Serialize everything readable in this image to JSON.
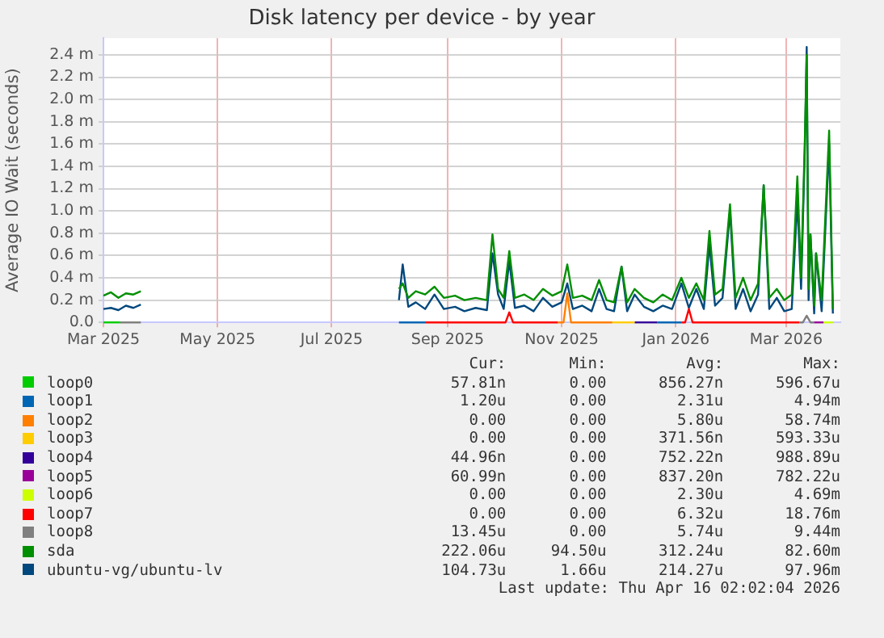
{
  "chart_data": {
    "type": "line",
    "title": "Disk latency per device - by year",
    "ylabel": "Average IO Wait (seconds)",
    "x": [
      "2025-03-01",
      "2025-03-05",
      "2025-03-09",
      "2025-03-13",
      "2025-03-17",
      "2025-03-21",
      "2025-05-15",
      "2025-08-06",
      "2025-08-08",
      "2025-08-11",
      "2025-08-15",
      "2025-08-20",
      "2025-08-25",
      "2025-08-30",
      "2025-09-05",
      "2025-09-10",
      "2025-09-16",
      "2025-09-22",
      "2025-09-25",
      "2025-09-28",
      "2025-10-01",
      "2025-10-04",
      "2025-10-07",
      "2025-10-12",
      "2025-10-17",
      "2025-10-22",
      "2025-10-27",
      "2025-11-01",
      "2025-11-04",
      "2025-11-07",
      "2025-11-12",
      "2025-11-17",
      "2025-11-21",
      "2025-11-25",
      "2025-11-29",
      "2025-12-03",
      "2025-12-06",
      "2025-12-10",
      "2025-12-15",
      "2025-12-20",
      "2025-12-25",
      "2025-12-30",
      "2026-01-04",
      "2026-01-08",
      "2026-01-12",
      "2026-01-16",
      "2026-01-19",
      "2026-01-22",
      "2026-01-26",
      "2026-01-30",
      "2026-02-02",
      "2026-02-06",
      "2026-02-10",
      "2026-02-14",
      "2026-02-17",
      "2026-02-20",
      "2026-02-24",
      "2026-02-28",
      "2026-03-04",
      "2026-03-07",
      "2026-03-09",
      "2026-03-11",
      "2026-03-12",
      "2026-03-13",
      "2026-03-14",
      "2026-03-16",
      "2026-03-17",
      "2026-03-20",
      "2026-03-24",
      "2026-03-26"
    ],
    "series": [
      {
        "name": "loop0",
        "color": "#00cc00",
        "x": [
          "2025-03-01",
          "2025-03-10"
        ],
        "values": [
          0,
          0
        ]
      },
      {
        "name": "loop1",
        "color": "#0066b3",
        "x": [
          "2025-08-06",
          "2025-08-20",
          "2025-09-01",
          "2025-12-22",
          "2026-01-04"
        ],
        "values": [
          0,
          0,
          null,
          0,
          0
        ]
      },
      {
        "name": "loop2",
        "color": "#ff8000",
        "x": [
          "2025-10-30",
          "2025-11-02",
          "2025-11-04",
          "2025-11-06",
          "2025-11-28"
        ],
        "values": [
          0,
          0,
          0.26,
          0,
          0
        ]
      },
      {
        "name": "loop3",
        "color": "#ffcc00",
        "x": [
          "2025-11-28",
          "2025-12-10"
        ],
        "values": [
          0,
          0
        ]
      },
      {
        "name": "loop4",
        "color": "#330099",
        "x": [
          "2025-12-10",
          "2025-12-22"
        ],
        "values": [
          0,
          0
        ]
      },
      {
        "name": "loop5",
        "color": "#990099",
        "x": [
          "2026-03-16",
          "2026-03-21"
        ],
        "values": [
          0,
          0
        ]
      },
      {
        "name": "loop6",
        "color": "#ccff00",
        "x": [
          "2026-03-21",
          "2026-03-26"
        ],
        "values": [
          0,
          0
        ]
      },
      {
        "name": "loop7",
        "color": "#ff0000",
        "x": [
          "2025-08-20",
          "2025-10-02",
          "2025-10-04",
          "2025-10-06",
          "2025-10-30",
          "2025-11-15",
          "2026-01-04",
          "2026-01-06",
          "2026-01-08",
          "2026-01-10",
          "2026-03-08"
        ],
        "values": [
          0,
          0,
          0.09,
          0,
          0,
          null,
          0,
          0,
          0.12,
          0,
          0
        ]
      },
      {
        "name": "loop8",
        "color": "#808080",
        "x": [
          "2025-03-10",
          "2025-03-21",
          "2025-05-15",
          "2026-03-08",
          "2026-03-10",
          "2026-03-12",
          "2026-03-14",
          "2026-03-16"
        ],
        "values": [
          0,
          0,
          null,
          0,
          0,
          0.06,
          0,
          0
        ]
      },
      {
        "name": "sda",
        "color": "#008f00",
        "values": [
          0.24,
          0.27,
          0.22,
          0.26,
          0.25,
          0.28,
          null,
          0.3,
          0.35,
          0.22,
          0.28,
          0.25,
          0.32,
          0.22,
          0.24,
          0.2,
          0.22,
          0.2,
          0.79,
          0.3,
          0.22,
          0.64,
          0.22,
          0.25,
          0.2,
          0.3,
          0.24,
          0.28,
          0.52,
          0.22,
          0.24,
          0.2,
          0.38,
          0.2,
          0.18,
          0.5,
          0.18,
          0.3,
          0.22,
          0.18,
          0.25,
          0.2,
          0.4,
          0.22,
          0.35,
          0.2,
          0.82,
          0.25,
          0.3,
          1.06,
          0.22,
          0.4,
          0.2,
          0.35,
          1.23,
          0.22,
          0.3,
          0.2,
          0.25,
          1.31,
          0.4,
          1.63,
          2.4,
          0.3,
          0.79,
          0.15,
          0.62,
          0.2,
          1.72,
          0.12
        ]
      },
      {
        "name": "ubuntu-vg/ubuntu-lv",
        "color": "#00487d",
        "values": [
          0.12,
          0.13,
          0.11,
          0.15,
          0.13,
          0.16,
          null,
          0.2,
          0.52,
          0.14,
          0.18,
          0.12,
          0.25,
          0.12,
          0.14,
          0.1,
          0.13,
          0.11,
          0.62,
          0.25,
          0.12,
          0.55,
          0.13,
          0.15,
          0.1,
          0.22,
          0.14,
          0.18,
          0.35,
          0.12,
          0.15,
          0.1,
          0.3,
          0.12,
          0.1,
          0.5,
          0.1,
          0.25,
          0.14,
          0.1,
          0.15,
          0.12,
          0.35,
          0.13,
          0.3,
          0.12,
          0.7,
          0.15,
          0.22,
          1.0,
          0.12,
          0.3,
          0.1,
          0.25,
          1.23,
          0.12,
          0.22,
          0.1,
          0.12,
          1.1,
          0.3,
          1.55,
          2.47,
          0.2,
          0.79,
          0.08,
          0.62,
          0.1,
          1.6,
          0.08
        ]
      }
    ],
    "xlim": [
      "2025-03-01",
      "2026-03-30"
    ],
    "xticks": [
      {
        "value": "2025-03-01",
        "label": "Mar 2025"
      },
      {
        "value": "2025-05-01",
        "label": "May 2025"
      },
      {
        "value": "2025-07-01",
        "label": "Jul 2025"
      },
      {
        "value": "2025-09-01",
        "label": "Sep 2025"
      },
      {
        "value": "2025-11-01",
        "label": "Nov 2025"
      },
      {
        "value": "2026-01-01",
        "label": "Jan 2026"
      },
      {
        "value": "2026-03-01",
        "label": "Mar 2026"
      }
    ],
    "ylim": [
      0,
      2.55
    ],
    "yticks": [
      {
        "value": 0,
        "label": "0.0"
      },
      {
        "value": 0.2,
        "label": "0.2 m"
      },
      {
        "value": 0.4,
        "label": "0.4 m"
      },
      {
        "value": 0.6,
        "label": "0.6 m"
      },
      {
        "value": 0.8,
        "label": "0.8 m"
      },
      {
        "value": 1.0,
        "label": "1.0 m"
      },
      {
        "value": 1.2,
        "label": "1.2 m"
      },
      {
        "value": 1.4,
        "label": "1.4 m"
      },
      {
        "value": 1.6,
        "label": "1.6 m"
      },
      {
        "value": 1.8,
        "label": "1.8 m"
      },
      {
        "value": 2.0,
        "label": "2.0 m"
      },
      {
        "value": 2.2,
        "label": "2.2 m"
      },
      {
        "value": 2.4,
        "label": "2.4 m"
      }
    ],
    "grid": true,
    "legend": "bottom",
    "marker": "none",
    "line_style": "solid",
    "annotations": [
      "Cur:",
      "Min:",
      "Avg:",
      "Max:",
      "57.81n",
      "0.00",
      "856.27n",
      "596.67u",
      "1.20u",
      "0.00",
      "2.31u",
      "4.94m",
      "0.00",
      "0.00",
      "5.80u",
      "58.74m",
      "0.00",
      "0.00",
      "371.56n",
      "593.33u",
      "44.96n",
      "0.00",
      "752.22n",
      "988.89u",
      "60.99n",
      "0.00",
      "837.20n",
      "782.22u",
      "0.00",
      "0.00",
      "2.30u",
      "4.69m",
      "0.00",
      "0.00",
      "6.32u",
      "18.76m",
      "13.45u",
      "0.00",
      "5.74u",
      "9.44m",
      "222.06u",
      "94.50u",
      "312.24u",
      "82.60m",
      "104.73u",
      "1.66u",
      "214.27u",
      "97.96m",
      "Last update: Thu Apr 16 02:02:04 2026"
    ]
  }
}
